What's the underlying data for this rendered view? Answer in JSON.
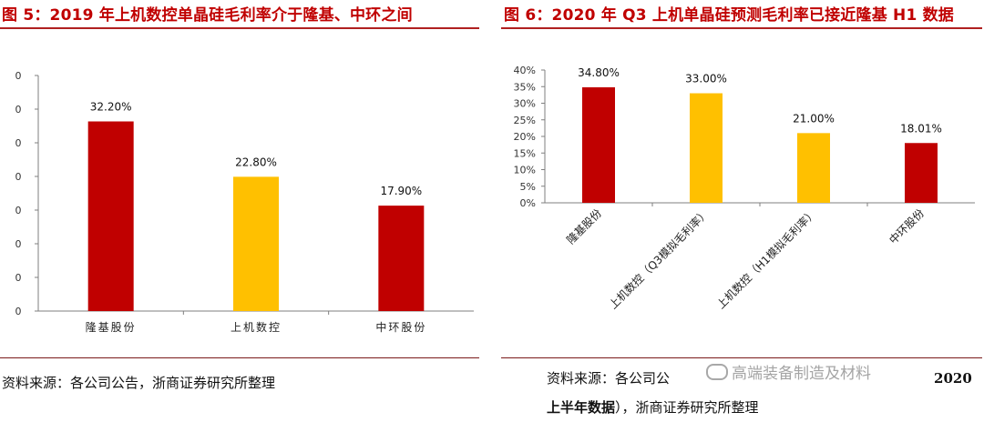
{
  "figures": [
    {
      "title": "图 5：2019 年上机数控单晶硅毛利率介于隆基、中环之间",
      "source": "资料来源：各公司公告，浙商证券研究所整理",
      "chart_data": {
        "type": "bar",
        "categories": [
          "隆基股份",
          "上机数控",
          "中环股份"
        ],
        "values": [
          32.2,
          22.8,
          17.9
        ],
        "data_labels": [
          "32.20%",
          "22.80%",
          "17.90%"
        ],
        "colors": [
          "#c00000",
          "#ffc000",
          "#c00000"
        ],
        "y_tick_labels": [
          "0",
          "0",
          "0",
          "0",
          "0",
          "0",
          "0",
          "0"
        ],
        "ylim": [
          0,
          40
        ],
        "grid": false,
        "legend": "none"
      }
    },
    {
      "title": "图 6：2020 年 Q3 上机单晶硅预测毛利率已接近隆基 H1 数据",
      "source_line1": "资料来源：各公司公",
      "source_line1_tail": "2020",
      "source_line2_bold": "上半年数据",
      "source_line2_rest": "），浙商证券研究所整理",
      "chart_data": {
        "type": "bar",
        "categories": [
          "隆基股份",
          "上机数控（Q3模拟毛利率）",
          "上机数控（H1模拟毛利率）",
          "中环股份"
        ],
        "values": [
          34.8,
          33.0,
          21.0,
          18.01
        ],
        "data_labels": [
          "34.80%",
          "33.00%",
          "21.00%",
          "18.01%"
        ],
        "colors": [
          "#c00000",
          "#ffc000",
          "#ffc000",
          "#c00000"
        ],
        "y_tick_labels": [
          "0%",
          "5%",
          "10%",
          "15%",
          "20%",
          "25%",
          "30%",
          "35%",
          "40%"
        ],
        "ylim": [
          0,
          40
        ],
        "grid": false,
        "legend": "none"
      }
    }
  ],
  "watermark": "高端装备制造及材料"
}
